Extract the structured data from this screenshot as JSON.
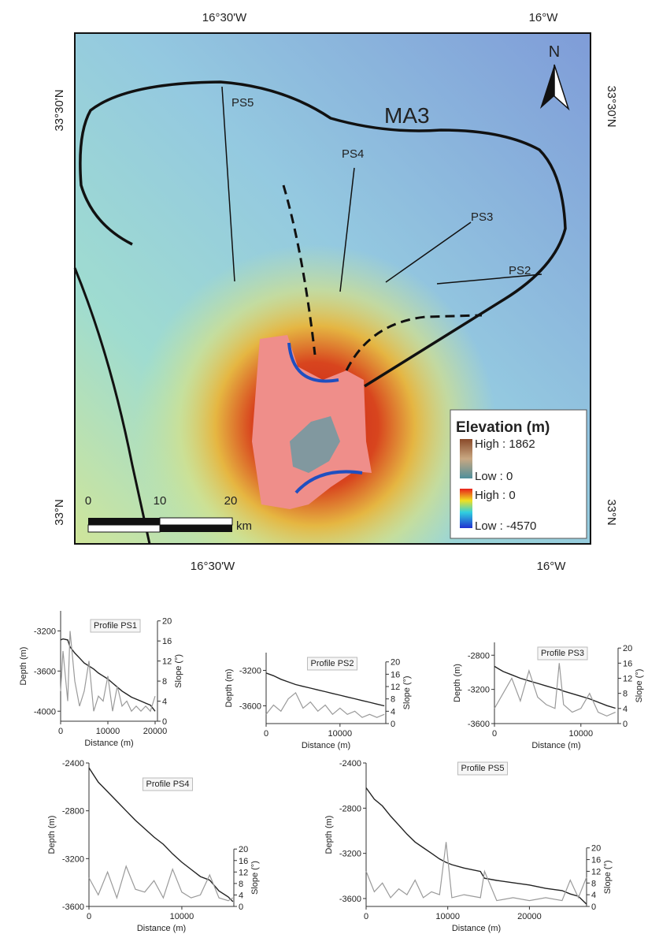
{
  "map": {
    "lon_labels": [
      "16°30'W",
      "16°W"
    ],
    "lat_labels": [
      "33°30'N",
      "33°N"
    ],
    "area_label": "MA3",
    "profile_labels": [
      "PS5",
      "PS4",
      "PS3",
      "PS2"
    ],
    "north": "N",
    "legend": {
      "title": "Elevation (m)",
      "land_high": "High : 1862",
      "land_low": "Low : 0",
      "sea_high": "High : 0",
      "sea_low": "Low : -4570"
    },
    "scale_bar": {
      "ticks": [
        "0",
        "10",
        "20"
      ],
      "unit": "km"
    }
  },
  "chart_data": [
    {
      "type": "line",
      "title": "Profile PS1",
      "xlabel": "Distance (m)",
      "ylabel": "Depth (m)",
      "y2label": "Slope (°)",
      "x": [
        0,
        500,
        1500,
        2000,
        3000,
        4000,
        5000,
        6000,
        7000,
        8000,
        9000,
        10000,
        11000,
        12000,
        13000,
        14000,
        15000,
        16000,
        17000,
        18000,
        19000,
        20000
      ],
      "series": [
        {
          "color": "#222222",
          "values": [
            -3290,
            -3280,
            -3290,
            -3360,
            -3420,
            -3470,
            -3520,
            -3550,
            -3580,
            -3620,
            -3650,
            -3680,
            -3720,
            -3760,
            -3800,
            -3830,
            -3860,
            -3880,
            -3900,
            -3920,
            -3940,
            -4000
          ]
        },
        {
          "color": "#9a9a9a",
          "axis": "y2",
          "values": [
            6,
            14,
            4,
            18,
            8,
            3,
            6,
            12,
            2,
            5,
            4,
            9,
            2,
            7,
            3,
            4,
            2,
            3,
            2,
            3,
            2,
            5
          ]
        }
      ],
      "xlim": [
        0,
        20500
      ],
      "xticks": [
        0,
        10000,
        20000
      ],
      "ylim": [
        -4100,
        -3000
      ],
      "yticks": [
        -4000,
        -3600,
        -3200
      ],
      "y2lim": [
        0,
        22
      ],
      "y2ticks": [
        0,
        4,
        8,
        12,
        16,
        20
      ]
    },
    {
      "type": "line",
      "title": "Profile PS2",
      "xlabel": "Distance (m)",
      "ylabel": "Depth (m)",
      "y2label": "Slope (°)",
      "x": [
        0,
        1000,
        2000,
        3000,
        4000,
        5000,
        6000,
        7000,
        8000,
        9000,
        10000,
        11000,
        12000,
        13000,
        14000,
        15000,
        16000
      ],
      "series": [
        {
          "color": "#222222",
          "values": [
            -3230,
            -3260,
            -3300,
            -3330,
            -3360,
            -3380,
            -3400,
            -3420,
            -3440,
            -3460,
            -3480,
            -3500,
            -3520,
            -3540,
            -3560,
            -3580,
            -3600
          ]
        },
        {
          "color": "#9a9a9a",
          "axis": "y2",
          "values": [
            3,
            6,
            4,
            8,
            10,
            5,
            7,
            4,
            6,
            3,
            5,
            3,
            4,
            2,
            3,
            2,
            3
          ]
        }
      ],
      "xlim": [
        0,
        16200
      ],
      "xticks": [
        0,
        10000
      ],
      "ylim": [
        -3800,
        -3000
      ],
      "yticks": [
        -3600,
        -3200
      ],
      "y2lim": [
        0,
        23
      ],
      "y2ticks": [
        0,
        4,
        8,
        12,
        16,
        20
      ]
    },
    {
      "type": "line",
      "title": "Profile PS3",
      "xlabel": "Distance (m)",
      "ylabel": "Depth (m)",
      "y2label": "Slope (°)",
      "x": [
        0,
        1000,
        2000,
        3000,
        4000,
        5000,
        6000,
        7000,
        7500,
        8000,
        9000,
        10000,
        11000,
        12000,
        13000,
        14000
      ],
      "series": [
        {
          "color": "#222222",
          "values": [
            -2930,
            -2990,
            -3030,
            -3070,
            -3100,
            -3130,
            -3160,
            -3190,
            -3200,
            -3220,
            -3250,
            -3280,
            -3310,
            -3350,
            -3390,
            -3420
          ]
        },
        {
          "color": "#9a9a9a",
          "axis": "y2",
          "values": [
            4,
            8,
            12,
            6,
            14,
            7,
            5,
            4,
            16,
            5,
            3,
            4,
            8,
            3,
            2,
            3
          ]
        }
      ],
      "xlim": [
        0,
        14300
      ],
      "xticks": [
        0,
        10000
      ],
      "ylim": [
        -3600,
        -2650
      ],
      "yticks": [
        -3600,
        -3200,
        -2800
      ],
      "y2lim": [
        0,
        21.5
      ],
      "y2ticks": [
        0,
        4,
        8,
        12,
        16,
        20
      ]
    },
    {
      "type": "line",
      "title": "Profile PS4",
      "xlabel": "Distance (m)",
      "ylabel": "Depth (m)",
      "y2label": "Slope (°)",
      "x": [
        0,
        1000,
        2000,
        3000,
        4000,
        5000,
        6000,
        7000,
        8000,
        9000,
        10000,
        11000,
        12000,
        13000,
        14000,
        15000,
        15500
      ],
      "series": [
        {
          "color": "#222222",
          "values": [
            -2440,
            -2560,
            -2640,
            -2720,
            -2800,
            -2880,
            -2950,
            -3020,
            -3080,
            -3160,
            -3230,
            -3290,
            -3350,
            -3380,
            -3470,
            -3520,
            -3560
          ]
        },
        {
          "color": "#9a9a9a",
          "axis": "y2",
          "values": [
            10,
            4,
            12,
            3,
            14,
            6,
            5,
            9,
            3,
            13,
            5,
            3,
            4,
            11,
            3,
            2,
            3
          ]
        }
      ],
      "xlim": [
        0,
        15600
      ],
      "xticks": [
        0,
        10000
      ],
      "ylim": [
        -3600,
        -2400
      ],
      "yticks": [
        -3600,
        -3200,
        -2800,
        -2400
      ],
      "y2lim": [
        0,
        50
      ],
      "y2ticks": [
        0,
        4,
        8,
        12,
        16,
        20
      ]
    },
    {
      "type": "line",
      "title": "Profile PS5",
      "xlabel": "Distance (m)",
      "ylabel": "Depth (m)",
      "y2label": "Slope (°)",
      "x": [
        0,
        1000,
        2000,
        3000,
        4000,
        5000,
        6000,
        7000,
        8000,
        9000,
        9800,
        10500,
        12000,
        14000,
        14500,
        16000,
        18000,
        20000,
        22000,
        24000,
        25000,
        26000,
        27000
      ],
      "series": [
        {
          "color": "#222222",
          "values": [
            -2620,
            -2720,
            -2780,
            -2870,
            -2950,
            -3030,
            -3100,
            -3150,
            -3200,
            -3250,
            -3280,
            -3300,
            -3330,
            -3360,
            -3420,
            -3440,
            -3460,
            -3480,
            -3510,
            -3530,
            -3560,
            -3580,
            -3650
          ]
        },
        {
          "color": "#9a9a9a",
          "axis": "y2",
          "values": [
            12,
            5,
            8,
            3,
            6,
            4,
            9,
            3,
            5,
            4,
            22,
            3,
            4,
            3,
            12,
            2,
            3,
            2,
            3,
            2,
            9,
            3,
            10
          ]
        }
      ],
      "xlim": [
        0,
        27000
      ],
      "xticks": [
        0,
        10000,
        20000
      ],
      "ylim": [
        -3670,
        -2400
      ],
      "yticks": [
        -3600,
        -3200,
        -2800,
        -2400
      ],
      "y2lim": [
        0,
        49
      ],
      "y2ticks": [
        0,
        4,
        8,
        12,
        16,
        20
      ]
    }
  ]
}
